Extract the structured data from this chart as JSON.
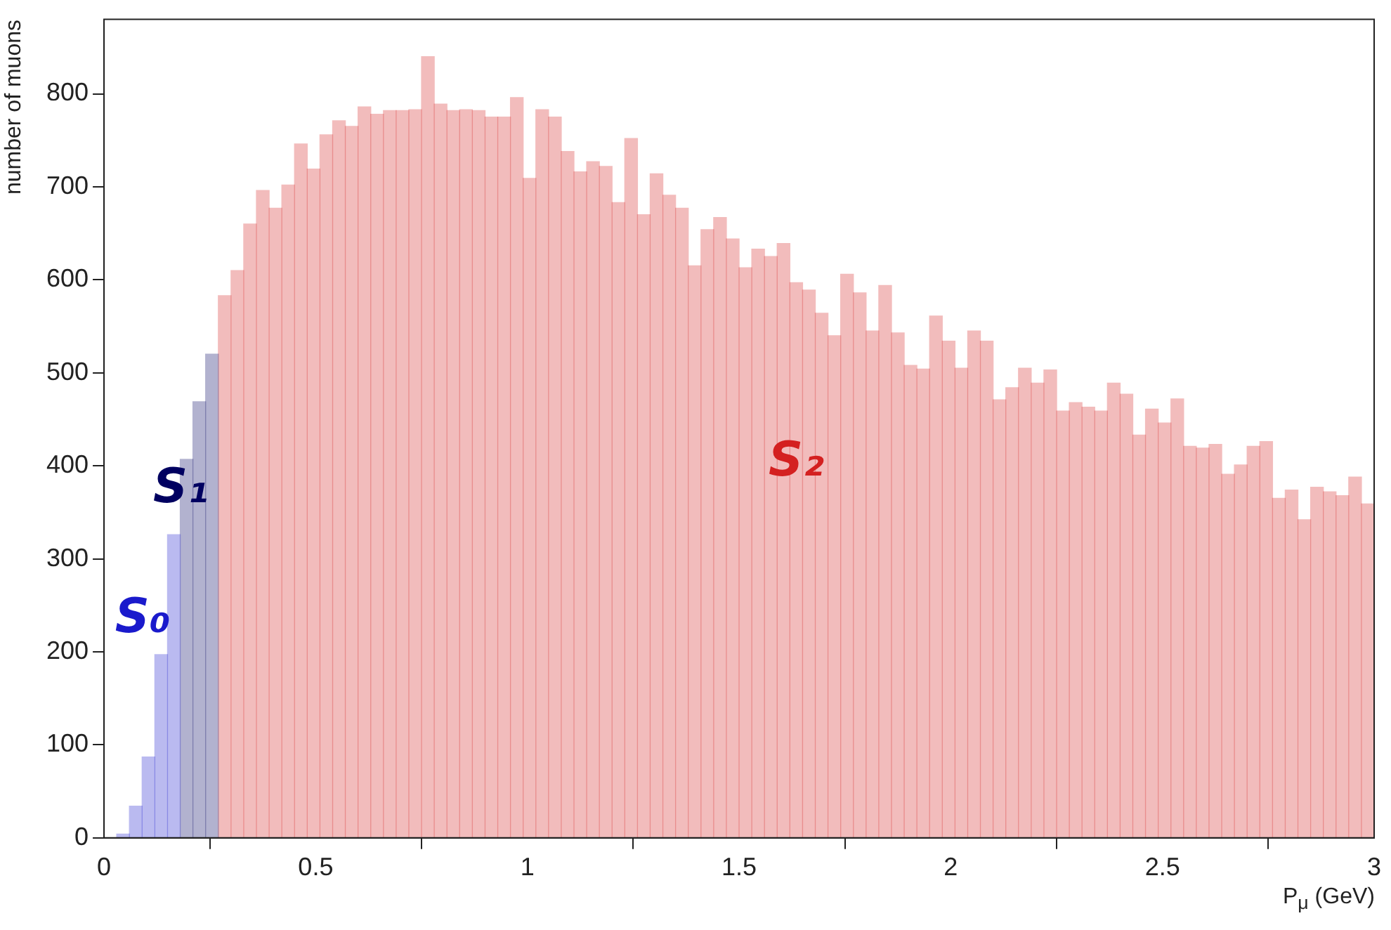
{
  "chart_data": {
    "type": "histogram",
    "xlabel": "P$_{μ}$ (GeV)",
    "ylabel": "number of muons",
    "xlim": [
      0,
      3
    ],
    "ylim": [
      0,
      880
    ],
    "xticks": [
      0,
      0.5,
      1,
      1.5,
      2,
      2.5,
      3
    ],
    "yticks": [
      0,
      100,
      200,
      300,
      400,
      500,
      600,
      700,
      800
    ],
    "grid": false,
    "bins": [
      0.03,
      0.06,
      0.09,
      0.12,
      0.15,
      0.18,
      0.21,
      0.24,
      0.27,
      0.3,
      0.33,
      0.36,
      0.39,
      0.42,
      0.45,
      0.48,
      0.51,
      0.54,
      0.57,
      0.6,
      0.63,
      0.66,
      0.69,
      0.72,
      0.75,
      0.78,
      0.81,
      0.84,
      0.87,
      0.9,
      0.93,
      0.96,
      0.99,
      1.02,
      1.05,
      1.08,
      1.11,
      1.14,
      1.17,
      1.2,
      1.23,
      1.26,
      1.29,
      1.32,
      1.35,
      1.38,
      1.41,
      1.44,
      1.47,
      1.5,
      1.53,
      1.56,
      1.59,
      1.62,
      1.65,
      1.68,
      1.71,
      1.74,
      1.77,
      1.8,
      1.83,
      1.86,
      1.89,
      1.92,
      1.95,
      1.98,
      2.01,
      2.04,
      2.07,
      2.1,
      2.13,
      2.16,
      2.19,
      2.22,
      2.25,
      2.28,
      2.31,
      2.34,
      2.37,
      2.4,
      2.43,
      2.46,
      2.49,
      2.52,
      2.55,
      2.58,
      2.61,
      2.64,
      2.67,
      2.7,
      2.73,
      2.76,
      2.79,
      2.82,
      2.85,
      2.88,
      2.91,
      2.94,
      2.97,
      3.0
    ],
    "series": [
      {
        "name": "S₀",
        "color": "#1a1acc",
        "values": [
          4,
          34,
          87,
          197,
          326,
          null,
          null,
          null,
          null,
          null,
          null,
          null,
          null,
          null,
          null,
          null,
          null,
          null,
          null,
          null,
          null,
          null,
          null,
          null,
          null,
          null,
          null,
          null,
          null,
          null,
          null,
          null,
          null,
          null,
          null,
          null,
          null,
          null,
          null,
          null,
          null,
          null,
          null,
          null,
          null,
          null,
          null,
          null,
          null,
          null,
          null,
          null,
          null,
          null,
          null,
          null,
          null,
          null,
          null,
          null,
          null,
          null,
          null,
          null,
          null,
          null,
          null,
          null,
          null,
          null,
          null,
          null,
          null,
          null,
          null,
          null,
          null,
          null,
          null,
          null,
          null,
          null,
          null,
          null,
          null,
          null,
          null,
          null,
          null,
          null,
          null,
          null,
          null,
          null,
          null,
          null,
          null,
          null,
          null
        ]
      },
      {
        "name": "S₁",
        "color": "#000060",
        "values": [
          null,
          null,
          null,
          null,
          null,
          407,
          469,
          520,
          null,
          null,
          null,
          null,
          null,
          null,
          null,
          null,
          null,
          null,
          null,
          null,
          null,
          null,
          null,
          null,
          null,
          null,
          null,
          null,
          null,
          null,
          null,
          null,
          null,
          null,
          null,
          null,
          null,
          null,
          null,
          null,
          null,
          null,
          null,
          null,
          null,
          null,
          null,
          null,
          null,
          null,
          null,
          null,
          null,
          null,
          null,
          null,
          null,
          null,
          null,
          null,
          null,
          null,
          null,
          null,
          null,
          null,
          null,
          null,
          null,
          null,
          null,
          null,
          null,
          null,
          null,
          null,
          null,
          null,
          null,
          null,
          null,
          null,
          null,
          null,
          null,
          null,
          null,
          null,
          null,
          null,
          null,
          null,
          null,
          null,
          null,
          null,
          null,
          null,
          null
        ]
      },
      {
        "name": "S₂",
        "color": "#d42020",
        "values": [
          null,
          null,
          null,
          null,
          null,
          null,
          null,
          null,
          583,
          610,
          660,
          696,
          677,
          702,
          746,
          719,
          756,
          771,
          765,
          786,
          778,
          782,
          782,
          783,
          840,
          789,
          782,
          783,
          782,
          775,
          775,
          796,
          709,
          783,
          775,
          738,
          716,
          727,
          722,
          683,
          752,
          670,
          714,
          691,
          677,
          615,
          654,
          667,
          644,
          613,
          633,
          625,
          639,
          597,
          589,
          564,
          540,
          606,
          586,
          545,
          594,
          543,
          508,
          504,
          561,
          534,
          505,
          545,
          534,
          471,
          484,
          505,
          489,
          503,
          459,
          468,
          463,
          459,
          489,
          477,
          433,
          461,
          446,
          472,
          421,
          419,
          423,
          391,
          401,
          421,
          426,
          365,
          374,
          342,
          377,
          372,
          368,
          388,
          359
        ]
      }
    ]
  }
}
